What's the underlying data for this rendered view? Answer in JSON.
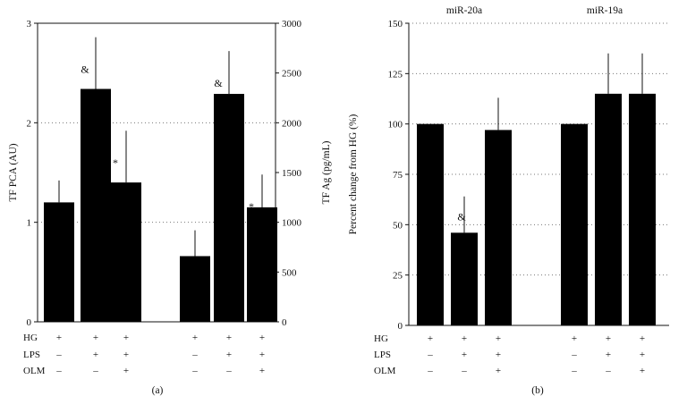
{
  "chart_data": [
    {
      "panel_label": "(a)",
      "type": "bar",
      "groups": [
        {
          "axis": "left",
          "ylabel": "TF PCA (AU)",
          "ylim": [
            0,
            3
          ],
          "yticks": [
            "0",
            "1",
            "2",
            "3"
          ],
          "values": [
            1.2,
            2.34,
            1.4
          ],
          "errors": [
            0.22,
            0.52,
            0.52
          ],
          "marks": [
            "",
            "&",
            "*"
          ]
        },
        {
          "axis": "right",
          "ylabel": "TF Ag (pg/mL)",
          "ylim": [
            0,
            3000
          ],
          "yticks": [
            "0",
            "500",
            "1000",
            "1500",
            "2000",
            "2500",
            "3000"
          ],
          "values": [
            660,
            2290,
            1150
          ],
          "errors": [
            260,
            430,
            330
          ],
          "marks": [
            "",
            "&",
            "*"
          ]
        }
      ],
      "grid": "dotted horizontal",
      "condition_rows": [
        {
          "label": "HG",
          "signs": [
            "+",
            "+",
            "+",
            "+",
            "+",
            "+"
          ]
        },
        {
          "label": "LPS",
          "signs": [
            "–",
            "+",
            "+",
            "–",
            "+",
            "+"
          ]
        },
        {
          "label": "OLM",
          "signs": [
            "–",
            "–",
            "+",
            "–",
            "–",
            "+"
          ]
        }
      ]
    },
    {
      "panel_label": "(b)",
      "type": "bar",
      "ylabel": "Percent change from HG (%)",
      "ylim": [
        0,
        150
      ],
      "yticks": [
        "0",
        "25",
        "50",
        "75",
        "100",
        "125",
        "150"
      ],
      "grid": "dotted horizontal",
      "groups": [
        {
          "title": "miR-20a",
          "values": [
            100,
            46,
            97
          ],
          "errors": [
            0,
            18,
            16
          ],
          "marks": [
            "",
            "&",
            ""
          ]
        },
        {
          "title": "miR-19a",
          "values": [
            100,
            115,
            115
          ],
          "errors": [
            0,
            20,
            20
          ],
          "marks": [
            "",
            "",
            ""
          ]
        }
      ],
      "condition_rows": [
        {
          "label": "HG",
          "signs": [
            "+",
            "+",
            "+",
            "+",
            "+",
            "+"
          ]
        },
        {
          "label": "LPS",
          "signs": [
            "–",
            "+",
            "+",
            "–",
            "+",
            "+"
          ]
        },
        {
          "label": "OLM",
          "signs": [
            "–",
            "–",
            "+",
            "–",
            "–",
            "+"
          ]
        }
      ]
    }
  ]
}
